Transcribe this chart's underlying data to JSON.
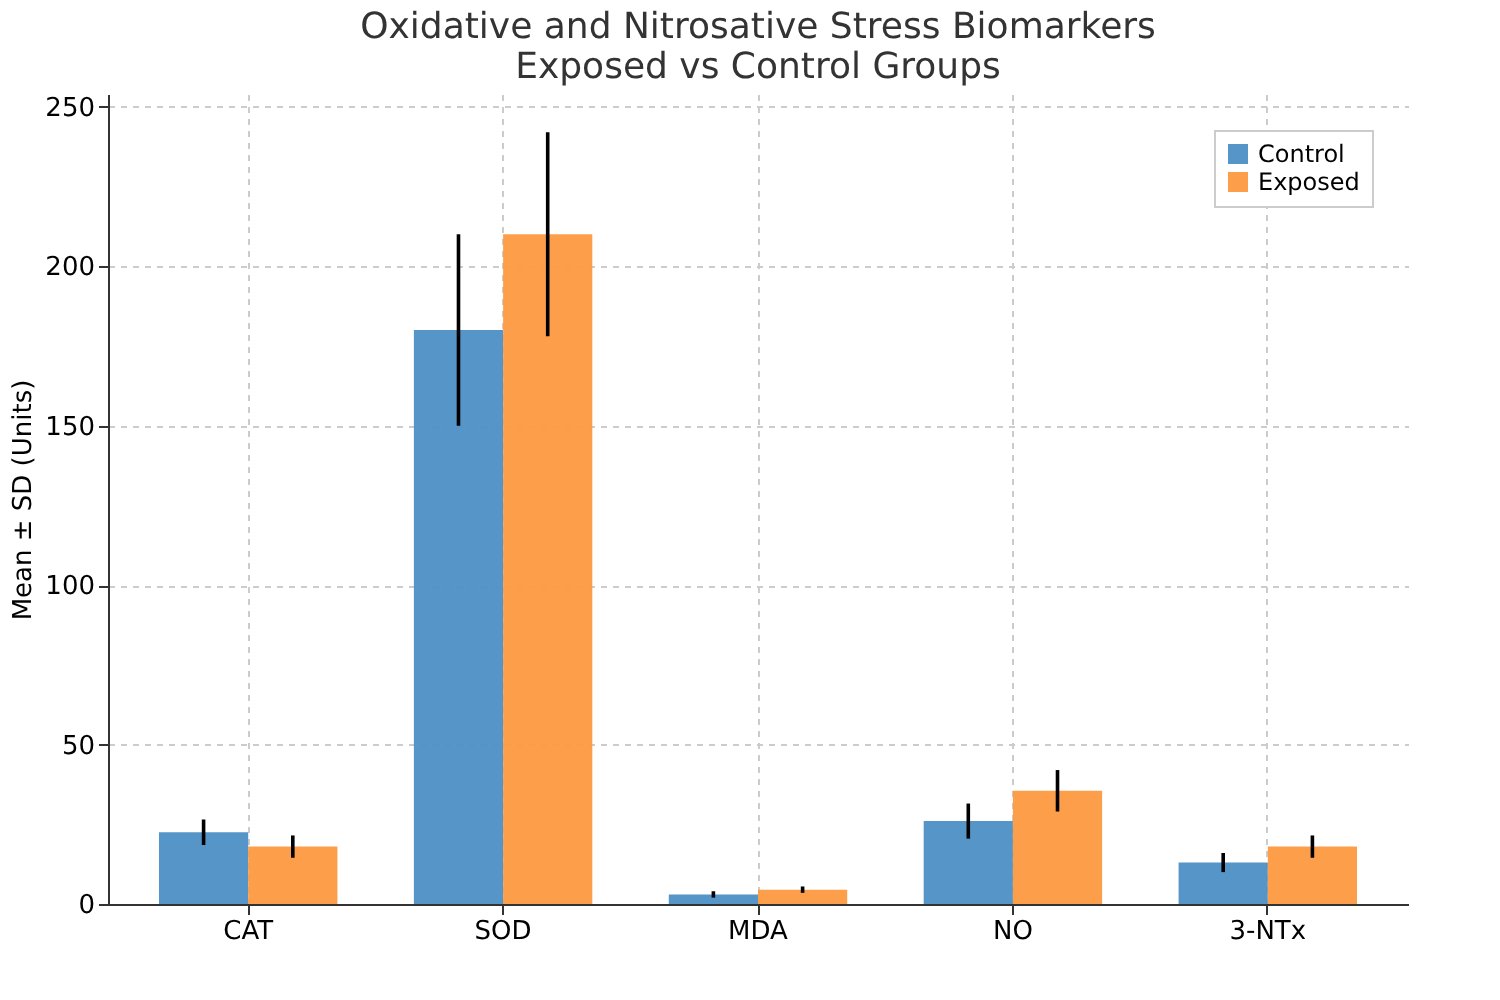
{
  "chart_data": {
    "type": "bar",
    "title": "Oxidative and Nitrosative Stress Biomarkers\nExposed vs Control Groups",
    "ylabel": "Mean ± SD (Units)",
    "categories": [
      "CAT",
      "SOD",
      "MDA",
      "NO",
      "3-NTx"
    ],
    "series": [
      {
        "name": "Control",
        "color": "#4c8fc4",
        "values": [
          22.5,
          180,
          3,
          26,
          13
        ],
        "errors": [
          4,
          30,
          1,
          5.5,
          3
        ]
      },
      {
        "name": "Exposed",
        "color": "#fd9a40",
        "values": [
          18,
          210,
          4.5,
          35.5,
          18
        ],
        "errors": [
          3.5,
          32,
          1,
          6.5,
          3.5
        ]
      }
    ],
    "ylim": [
      0,
      254
    ],
    "yticks": [
      0,
      50,
      100,
      150,
      200,
      250
    ],
    "grid": true,
    "legend": "top right"
  }
}
